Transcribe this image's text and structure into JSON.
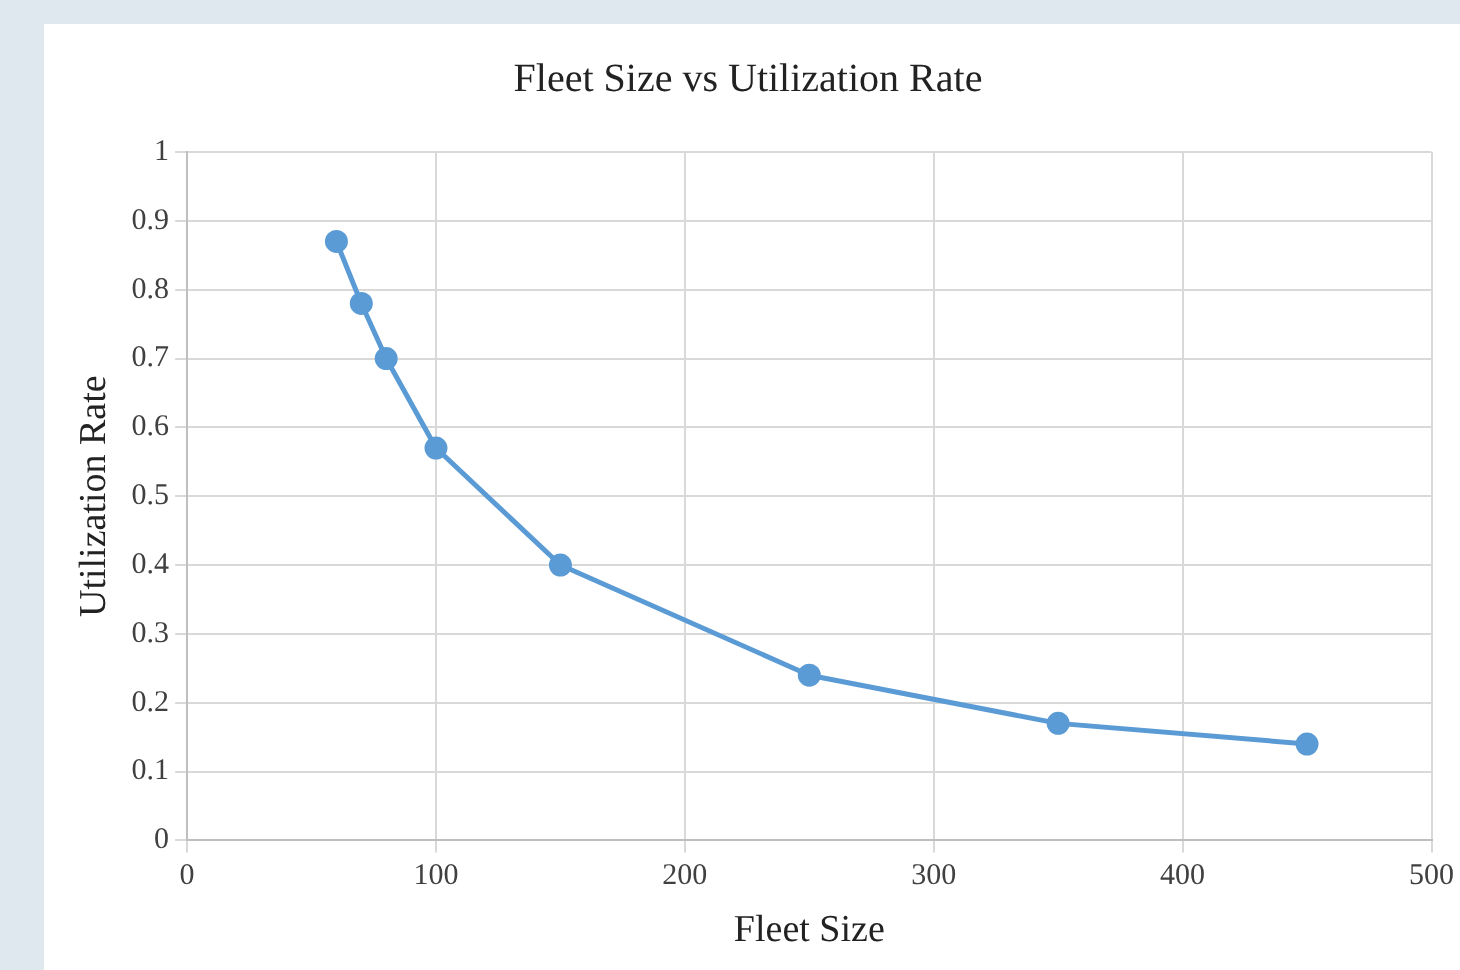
{
  "chart_data": {
    "type": "line",
    "title": "Fleet Size vs Utilization Rate",
    "xlabel": "Fleet Size",
    "ylabel": "Utilization Rate",
    "x": [
      60,
      70,
      80,
      100,
      150,
      250,
      350,
      450
    ],
    "series": [
      {
        "color": "#5b9bd5",
        "values": [
          0.87,
          0.78,
          0.7,
          0.57,
          0.4,
          0.24,
          0.17,
          0.14
        ]
      }
    ],
    "xlim": [
      0,
      500
    ],
    "xticks": [
      0,
      100,
      200,
      300,
      400,
      500
    ],
    "ylim": [
      0,
      1
    ],
    "yticks": [
      0,
      0.1,
      0.2,
      0.3,
      0.4,
      0.5,
      0.6,
      0.7,
      0.8,
      0.9,
      1
    ],
    "grid": true,
    "marker": "circle",
    "line_style": "solid",
    "legend": false
  }
}
